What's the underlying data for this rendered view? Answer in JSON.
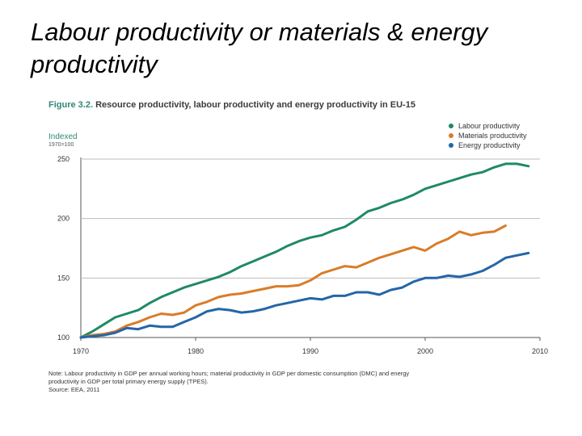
{
  "slide": {
    "title": "Labour productivity or materials & energy productivity"
  },
  "figure": {
    "label": "Figure 3.2.",
    "caption": "Resource productivity, labour productivity and energy productivity in EU-15",
    "ylabel": "Indexed",
    "ylabel_sub": "1970=100",
    "note_line1": "Note: Labour productivity in GDP per annual working hours; material productivity in GDP per domestic consumption (DMC) and energy",
    "note_line2": "productivity in GDP per total primary energy supply (TPES).",
    "source": "Source: EEA, 2011"
  },
  "chart_data": {
    "type": "line",
    "title": "Resource productivity, labour productivity and energy productivity in EU-15",
    "xlabel": "",
    "ylabel": "Indexed 1970=100",
    "xlim": [
      1970,
      2010
    ],
    "ylim": [
      100,
      250
    ],
    "xticks": [
      1970,
      1980,
      1990,
      2000,
      2010
    ],
    "yticks": [
      100,
      150,
      200,
      250
    ],
    "grid": true,
    "legend_position": "top-right",
    "series": [
      {
        "name": "Labour productivity",
        "color": "#1f8a62",
        "x": [
          1970,
          1971,
          1972,
          1973,
          1974,
          1975,
          1976,
          1977,
          1978,
          1979,
          1980,
          1981,
          1982,
          1983,
          1984,
          1985,
          1986,
          1987,
          1988,
          1989,
          1990,
          1991,
          1992,
          1993,
          1994,
          1995,
          1996,
          1997,
          1998,
          1999,
          2000,
          2001,
          2002,
          2003,
          2004,
          2005,
          2006,
          2007,
          2008,
          2009
        ],
        "values": [
          100,
          105,
          111,
          117,
          120,
          123,
          129,
          134,
          138,
          142,
          145,
          148,
          151,
          155,
          160,
          164,
          168,
          172,
          177,
          181,
          184,
          186,
          190,
          193,
          199,
          206,
          209,
          213,
          216,
          220,
          225,
          228,
          231,
          234,
          237,
          239,
          243,
          246,
          246,
          244
        ]
      },
      {
        "name": "Materials productivity",
        "color": "#d97c28",
        "x": [
          1970,
          1971,
          1972,
          1973,
          1974,
          1975,
          1976,
          1977,
          1978,
          1979,
          1980,
          1981,
          1982,
          1983,
          1984,
          1985,
          1986,
          1987,
          1988,
          1989,
          1990,
          1991,
          1992,
          1993,
          1994,
          1995,
          1996,
          1997,
          1998,
          1999,
          2000,
          2001,
          2002,
          2003,
          2004,
          2005,
          2006,
          2007
        ],
        "values": [
          100,
          102,
          103,
          105,
          110,
          113,
          117,
          120,
          119,
          121,
          127,
          130,
          134,
          136,
          137,
          139,
          141,
          143,
          143,
          144,
          148,
          154,
          157,
          160,
          159,
          163,
          167,
          170,
          173,
          176,
          173,
          179,
          183,
          189,
          186,
          188,
          189,
          194
        ]
      },
      {
        "name": "Energy productivity",
        "color": "#2466a8",
        "x": [
          1970,
          1971,
          1972,
          1973,
          1974,
          1975,
          1976,
          1977,
          1978,
          1979,
          1980,
          1981,
          1982,
          1983,
          1984,
          1985,
          1986,
          1987,
          1988,
          1989,
          1990,
          1991,
          1992,
          1993,
          1994,
          1995,
          1996,
          1997,
          1998,
          1999,
          2000,
          2001,
          2002,
          2003,
          2004,
          2005,
          2006,
          2007,
          2008,
          2009
        ],
        "values": [
          100,
          101,
          102,
          104,
          108,
          107,
          110,
          109,
          109,
          113,
          117,
          122,
          124,
          123,
          121,
          122,
          124,
          127,
          129,
          131,
          133,
          132,
          135,
          135,
          138,
          138,
          136,
          140,
          142,
          147,
          150,
          150,
          152,
          151,
          153,
          156,
          161,
          167,
          169,
          171
        ]
      }
    ]
  }
}
